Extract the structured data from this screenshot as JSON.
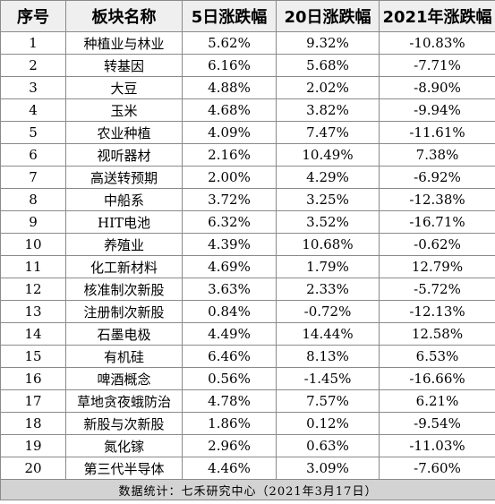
{
  "table": {
    "headers": [
      "序号",
      "板块名称",
      "5日涨跌幅",
      "20日涨跌幅",
      "2021年涨跌幅"
    ],
    "rows": [
      [
        "1",
        "种植业与林业",
        "5.62%",
        "9.32%",
        "-10.83%"
      ],
      [
        "2",
        "转基因",
        "6.16%",
        "5.68%",
        "-7.71%"
      ],
      [
        "3",
        "大豆",
        "4.88%",
        "2.02%",
        "-8.90%"
      ],
      [
        "4",
        "玉米",
        "4.68%",
        "3.82%",
        "-9.94%"
      ],
      [
        "5",
        "农业种植",
        "4.09%",
        "7.47%",
        "-11.61%"
      ],
      [
        "6",
        "视听器材",
        "2.16%",
        "10.49%",
        "7.38%"
      ],
      [
        "7",
        "高送转预期",
        "2.00%",
        "4.29%",
        "-6.92%"
      ],
      [
        "8",
        "中船系",
        "3.72%",
        "3.25%",
        "-12.38%"
      ],
      [
        "9",
        "HIT电池",
        "6.32%",
        "3.52%",
        "-16.71%"
      ],
      [
        "10",
        "养殖业",
        "4.39%",
        "10.68%",
        "-0.62%"
      ],
      [
        "11",
        "化工新材料",
        "4.69%",
        "1.79%",
        "12.79%"
      ],
      [
        "12",
        "核准制次新股",
        "3.63%",
        "2.33%",
        "-5.72%"
      ],
      [
        "13",
        "注册制次新股",
        "0.84%",
        "-0.72%",
        "-12.13%"
      ],
      [
        "14",
        "石墨电极",
        "4.49%",
        "14.44%",
        "12.58%"
      ],
      [
        "15",
        "有机硅",
        "6.46%",
        "8.13%",
        "6.53%"
      ],
      [
        "16",
        "啤酒概念",
        "0.56%",
        "-1.45%",
        "-16.66%"
      ],
      [
        "17",
        "草地贪夜蛾防治",
        "4.78%",
        "7.57%",
        "6.21%"
      ],
      [
        "18",
        "新股与次新股",
        "1.86%",
        "0.12%",
        "-9.54%"
      ],
      [
        "19",
        "氮化镓",
        "2.96%",
        "0.63%",
        "-11.03%"
      ],
      [
        "20",
        "第三代半导体",
        "4.46%",
        "3.09%",
        "-7.60%"
      ]
    ],
    "footer": "数据统计：七禾研究中心（2021年3月17日）"
  }
}
